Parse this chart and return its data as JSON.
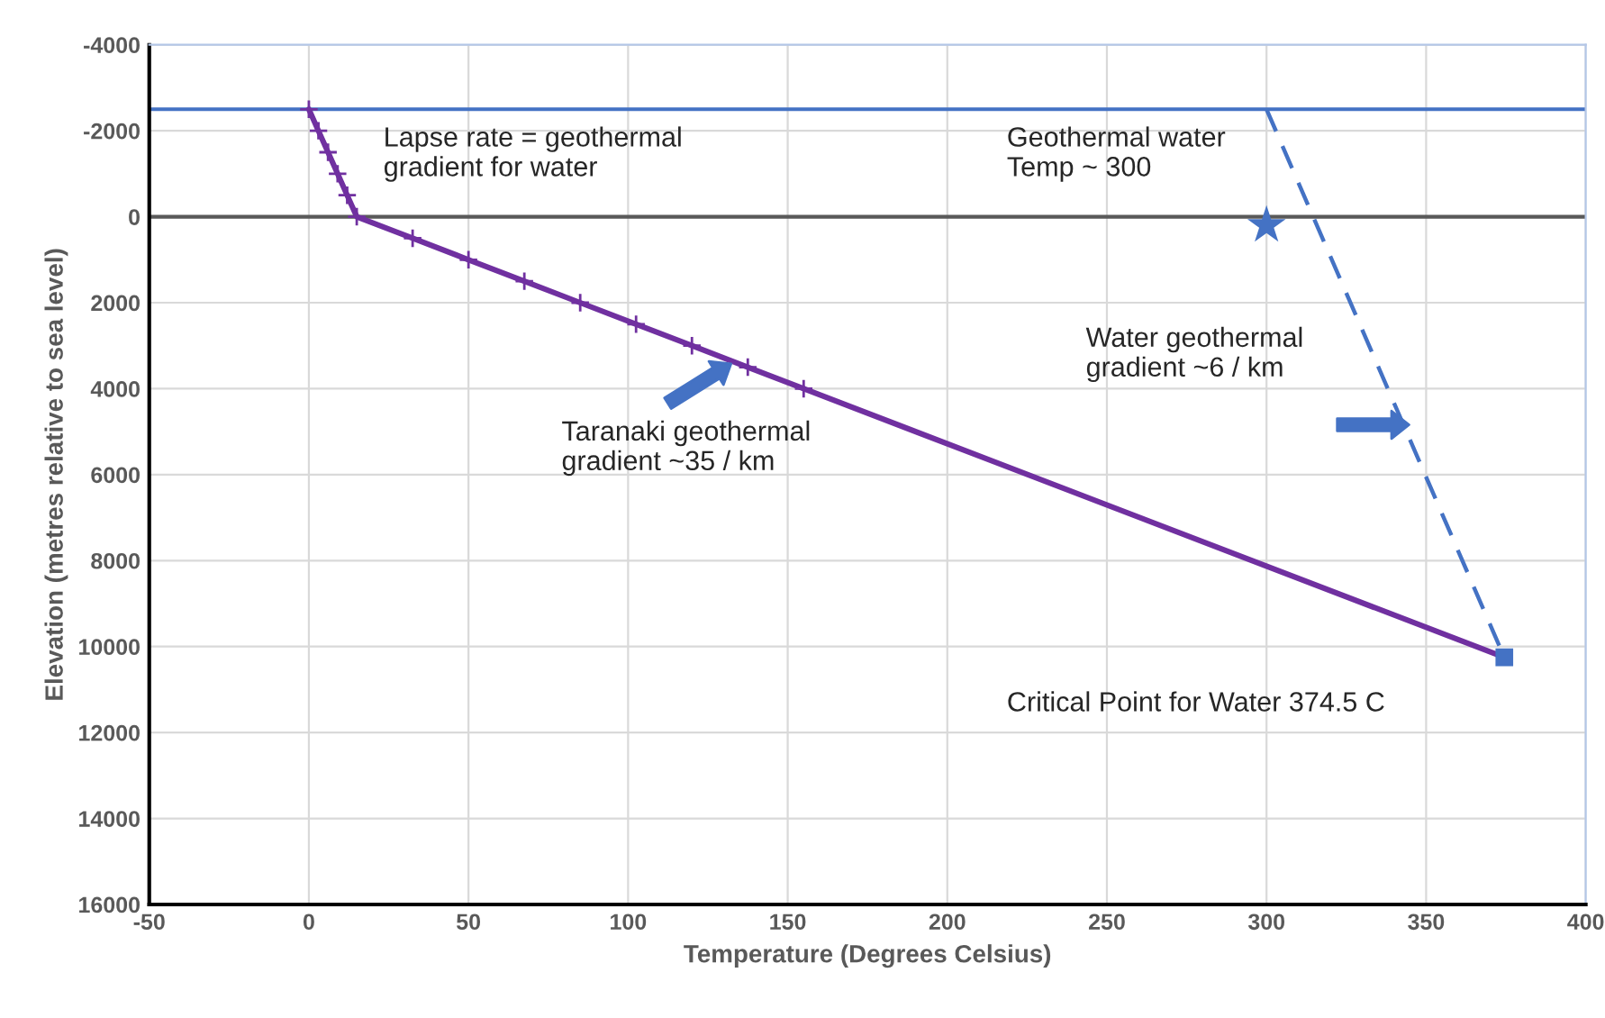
{
  "chart_data": {
    "type": "line",
    "xlabel": "Temperature (Degrees Celsius)",
    "ylabel": "Elevation (metres relative to sea level)",
    "xlim": [
      -50,
      400
    ],
    "xticks": [
      -50,
      0,
      50,
      100,
      150,
      200,
      250,
      300,
      350,
      400
    ],
    "ylim": [
      16000,
      -4000
    ],
    "yticks": [
      -4000,
      -2000,
      0,
      2000,
      4000,
      6000,
      8000,
      10000,
      12000,
      14000,
      16000
    ],
    "grid": true,
    "series": [
      {
        "color": "#7030a0",
        "marker": "cross",
        "line_style": "solid",
        "x": [
          0,
          3,
          6,
          9,
          12,
          15,
          32.5,
          50,
          67.5,
          85,
          102.5,
          120,
          137.5,
          155
        ],
        "values": [
          -2500,
          -2000,
          -1500,
          -1000,
          -500,
          0,
          500,
          1000,
          1500,
          2000,
          2500,
          3000,
          3500,
          4000
        ]
      },
      {
        "color": "#7030a0",
        "marker": "none",
        "line_style": "solid",
        "x": [
          155,
          374.5
        ],
        "values": [
          4000,
          10250
        ]
      },
      {
        "color": "#4472c4",
        "marker": "none",
        "line_style": "dashed",
        "x": [
          300,
          374.5
        ],
        "values": [
          -2500,
          10250
        ]
      },
      {
        "type": "scatter",
        "color": "#4472c4",
        "marker": "square",
        "x": [
          374.5
        ],
        "values": [
          10250
        ]
      },
      {
        "type": "scatter",
        "color": "#4472c4",
        "marker": "star",
        "x": [
          300
        ],
        "values": [
          200
        ]
      }
    ],
    "ref_lines": [
      {
        "axis": "y",
        "value": -2500,
        "color": "#4472c4",
        "line_style": "solid"
      },
      {
        "axis": "y",
        "value": 0,
        "color": "#595959",
        "line_style": "solid"
      }
    ],
    "annotations": [
      "Lapse rate = geothermal\ngradient for water",
      "Geothermal water\nTemp ~ 300",
      "Water geothermal\ngradient ~6 / km",
      "Taranaki geothermal\ngradient ~35 / km",
      "Critical Point for Water 374.5 C"
    ]
  }
}
